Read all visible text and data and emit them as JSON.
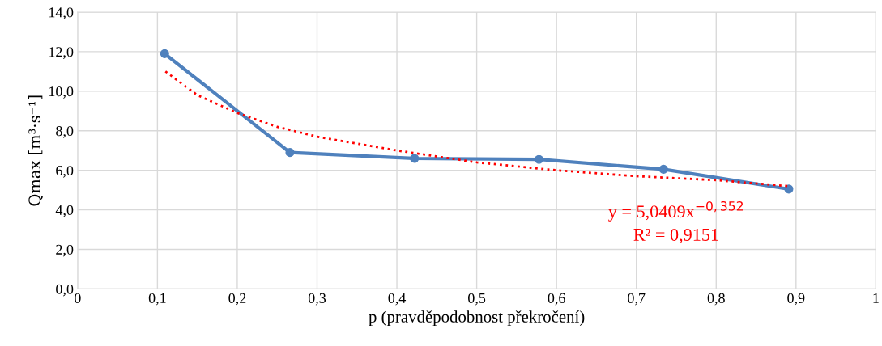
{
  "chart_data": {
    "type": "line",
    "xlabel": "p (pravděpodobnost překročení)",
    "ylabel": "Qmax [m³·s⁻¹]",
    "xlim": [
      0,
      1
    ],
    "ylim": [
      0,
      14
    ],
    "xticks": [
      0,
      {
        "value": 0.1,
        "label": "0,1"
      },
      {
        "value": 0.2,
        "label": "0,2"
      },
      {
        "value": 0.3,
        "label": "0,3"
      },
      {
        "value": 0.4,
        "label": "0,4"
      },
      {
        "value": 0.5,
        "label": "0,5"
      },
      {
        "value": 0.6,
        "label": "0,6"
      },
      {
        "value": 0.7,
        "label": "0,7"
      },
      {
        "value": 0.8,
        "label": "0,8"
      },
      {
        "value": 0.9,
        "label": "0,9"
      },
      1
    ],
    "yticks": [
      {
        "value": 0,
        "label": "0,0"
      },
      {
        "value": 2,
        "label": "2,0"
      },
      {
        "value": 4,
        "label": "4,0"
      },
      {
        "value": 6,
        "label": "6,0"
      },
      {
        "value": 8,
        "label": "8,0"
      },
      {
        "value": 10,
        "label": "10,0"
      },
      {
        "value": 12,
        "label": "12,0"
      },
      {
        "value": 14,
        "label": "14,0"
      }
    ],
    "grid": true,
    "series": [
      {
        "color": "#4f81bd",
        "marker": "circle",
        "line_style": "solid",
        "x": [
          0.109,
          0.266,
          0.422,
          0.578,
          0.734,
          0.891
        ],
        "values": [
          11.9,
          6.9,
          6.6,
          6.55,
          6.05,
          5.05
        ]
      },
      {
        "color": "#ff0000",
        "marker": "none",
        "line_style": "dotted",
        "x": [
          0.11,
          0.15,
          0.2,
          0.25,
          0.3,
          0.4,
          0.5,
          0.6,
          0.7,
          0.8,
          0.89
        ],
        "values": [
          11.0,
          9.8,
          8.9,
          8.2,
          7.7,
          7.0,
          6.4,
          6.0,
          5.7,
          5.5,
          5.2
        ]
      }
    ],
    "annotations": [
      "y = 5,0409x$^{−0,352}$",
      "R² = 0,9151"
    ]
  }
}
